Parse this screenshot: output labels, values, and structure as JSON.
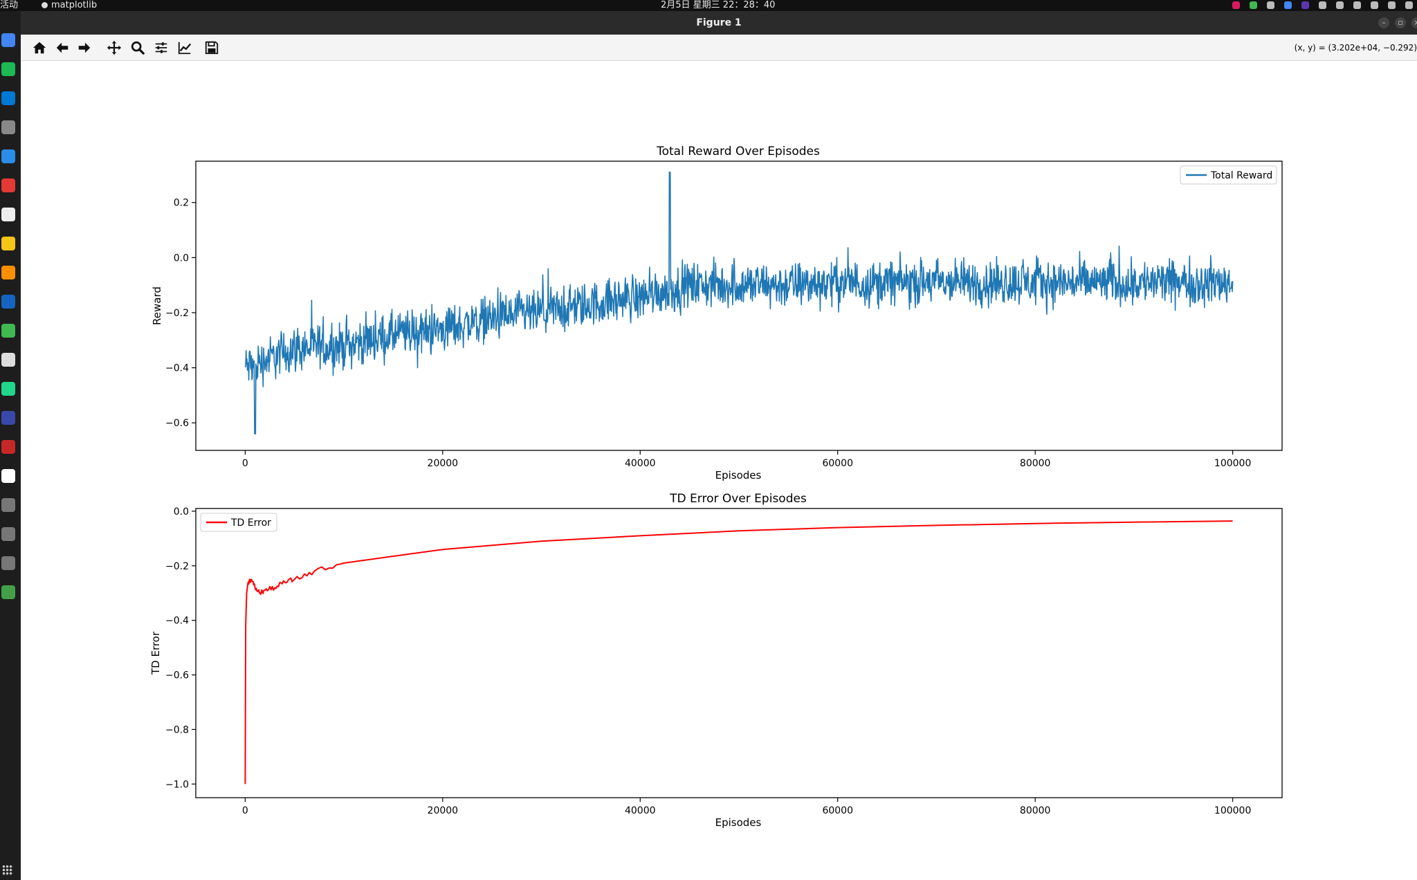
{
  "system_bar": {
    "activities": "活动",
    "app_name": "matplotlib",
    "clock": "2月5日 星期三  22：28：40"
  },
  "window": {
    "title": "Figure 1"
  },
  "toolbar": {
    "buttons": [
      "home-icon",
      "back-arrow-icon",
      "forward-arrow-icon",
      "pan-icon",
      "zoom-icon",
      "subplots-icon",
      "edit-axis-icon",
      "save-icon"
    ],
    "coords": "(x, y) = (3.202e+04, −0.292)"
  },
  "dock": {
    "colors": [
      "#4285f4",
      "#1db954",
      "#0078d4",
      "#888888",
      "#2a8ee6",
      "#e53935",
      "#eeeeee",
      "#f5c518",
      "#ff8f00",
      "#1565c0",
      "#3fb950",
      "#dddddd",
      "#21d789",
      "#3949ab",
      "#c62828",
      "#ffffff",
      "#777777",
      "#777777",
      "#777777",
      "#43a047"
    ]
  },
  "chart_data": [
    {
      "type": "line",
      "title": "Total Reward Over Episodes",
      "xlabel": "Episodes",
      "ylabel": "Reward",
      "xlim": [
        -5000,
        105000
      ],
      "ylim": [
        -0.7,
        0.35
      ],
      "xticks": [
        0,
        20000,
        40000,
        60000,
        80000,
        100000
      ],
      "xticklabels": [
        "0",
        "20000",
        "40000",
        "60000",
        "80000",
        "100000"
      ],
      "yticks": [
        -0.6,
        -0.4,
        -0.2,
        0.0,
        0.2
      ],
      "yticklabels": [
        "−0.6",
        "−0.4",
        "−0.2",
        "0.0",
        "0.2"
      ],
      "legend": {
        "placement": "upper right",
        "entries": [
          "Total Reward"
        ]
      },
      "grid": false,
      "series": [
        {
          "name": "Total Reward",
          "color": "#1f77b4",
          "x": [
            0,
            5000,
            10000,
            15000,
            20000,
            25000,
            30000,
            35000,
            40000,
            45000,
            50000,
            55000,
            60000,
            65000,
            70000,
            75000,
            80000,
            85000,
            90000,
            95000,
            100000
          ],
          "y": [
            -0.4,
            -0.33,
            -0.32,
            -0.28,
            -0.26,
            -0.22,
            -0.2,
            -0.17,
            -0.14,
            -0.1,
            -0.1,
            -0.1,
            -0.09,
            -0.09,
            -0.09,
            -0.09,
            -0.09,
            -0.09,
            -0.09,
            -0.09,
            -0.09
          ],
          "band": [
            0.24,
            0.24,
            0.24,
            0.24,
            0.24,
            0.24,
            0.24,
            0.24,
            0.24,
            0.24,
            0.24,
            0.24,
            0.24,
            0.24,
            0.24,
            0.24,
            0.24,
            0.24,
            0.24,
            0.24,
            0.24
          ],
          "peak": {
            "x": 43000,
            "y": 0.31
          },
          "low": {
            "x": 1000,
            "y": -0.64
          }
        }
      ]
    },
    {
      "type": "line",
      "title": "TD Error Over Episodes",
      "xlabel": "Episodes",
      "ylabel": "TD Error",
      "xlim": [
        -5000,
        105000
      ],
      "ylim": [
        -1.05,
        0.01
      ],
      "xticks": [
        0,
        20000,
        40000,
        60000,
        80000,
        100000
      ],
      "xticklabels": [
        "0",
        "20000",
        "40000",
        "60000",
        "80000",
        "100000"
      ],
      "yticks": [
        -1.0,
        -0.8,
        -0.6,
        -0.4,
        -0.2,
        0.0
      ],
      "yticklabels": [
        "−1.0",
        "−0.8",
        "−0.6",
        "−0.4",
        "−0.2",
        "0.0"
      ],
      "legend": {
        "placement": "upper left",
        "entries": [
          "TD Error"
        ]
      },
      "grid": false,
      "series": [
        {
          "name": "TD Error",
          "color": "#ff0000",
          "x": [
            0,
            50,
            150,
            300,
            600,
            1000,
            1500,
            2000,
            3000,
            4000,
            5000,
            7000,
            10000,
            15000,
            20000,
            25000,
            30000,
            40000,
            50000,
            60000,
            70000,
            80000,
            90000,
            100000
          ],
          "y": [
            -1.0,
            -0.42,
            -0.3,
            -0.26,
            -0.25,
            -0.28,
            -0.3,
            -0.29,
            -0.28,
            -0.26,
            -0.25,
            -0.22,
            -0.19,
            -0.165,
            -0.14,
            -0.125,
            -0.11,
            -0.09,
            -0.072,
            -0.06,
            -0.052,
            -0.045,
            -0.04,
            -0.036
          ]
        }
      ]
    }
  ]
}
